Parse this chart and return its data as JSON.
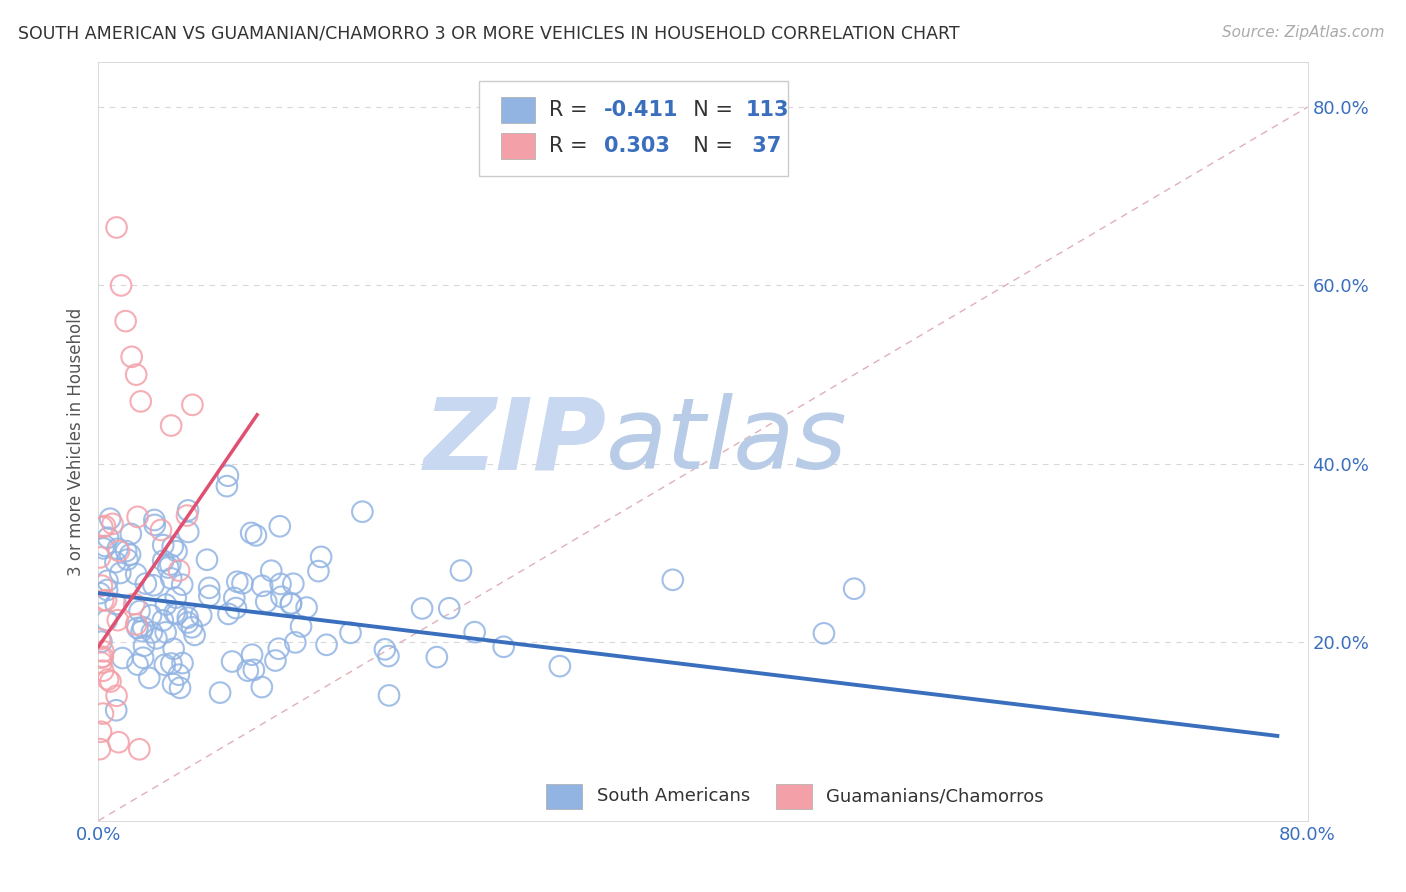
{
  "title": "SOUTH AMERICAN VS GUAMANIAN/CHAMORRO 3 OR MORE VEHICLES IN HOUSEHOLD CORRELATION CHART",
  "source_text": "Source: ZipAtlas.com",
  "ylabel": "3 or more Vehicles in Household",
  "blue_R": -0.411,
  "blue_N": 113,
  "pink_R": 0.303,
  "pink_N": 37,
  "blue_color": "#92b4e3",
  "pink_color": "#f4a0a8",
  "blue_line_color": "#3a6fbe",
  "pink_line_color": "#e05070",
  "ref_line_color": "#e0b0b8",
  "watermark_zip_color": "#c8d8f0",
  "watermark_atlas_color": "#c8d8f0",
  "background_color": "#ffffff",
  "grid_color": "#d8d8d8",
  "xlim": [
    0.0,
    0.8
  ],
  "ylim": [
    0.0,
    0.85
  ],
  "yticks": [
    0.2,
    0.4,
    0.6,
    0.8
  ],
  "ytick_labels": [
    "20.0%",
    "40.0%",
    "60.0%",
    "80.0%"
  ],
  "blue_trend_x0": 0.0,
  "blue_trend_x1": 0.78,
  "blue_trend_y0": 0.255,
  "blue_trend_y1": 0.095,
  "pink_trend_x0": 0.0,
  "pink_trend_x1": 0.105,
  "pink_trend_y0": 0.195,
  "pink_trend_y1": 0.455,
  "legend_blue_label": "R = -0.411   N = 113",
  "legend_pink_label": "R = 0.303   N =  37",
  "bottom_legend_blue": "South Americans",
  "bottom_legend_pink": "Guamanians/Chamorros"
}
